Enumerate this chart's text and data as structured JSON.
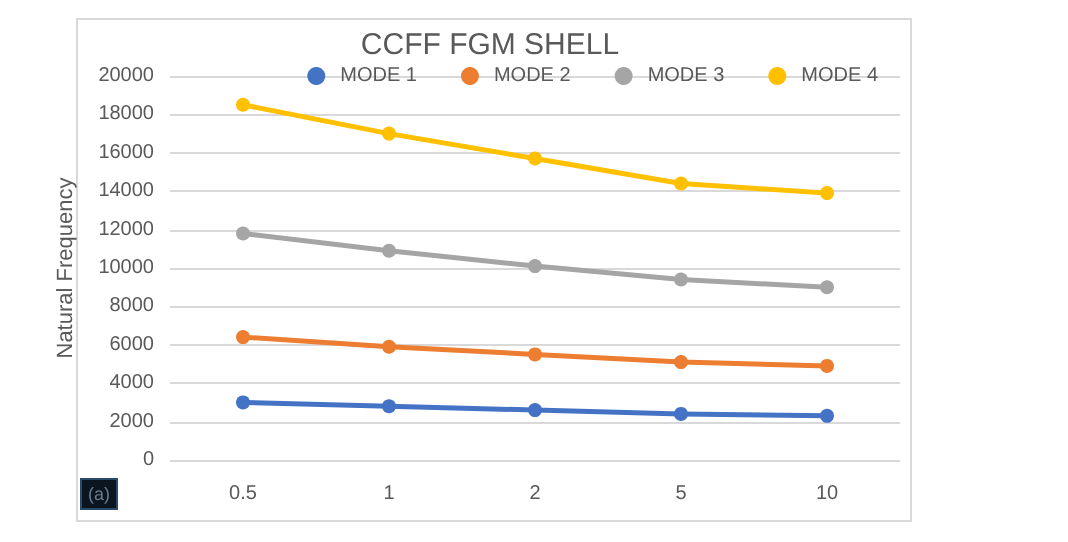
{
  "chart_data": {
    "type": "line",
    "title": "CCFF FGM SHELL",
    "ylabel": "Natural Frequency",
    "categories": [
      "0.5",
      "1",
      "2",
      "5",
      "10"
    ],
    "series": [
      {
        "name": "MODE 1",
        "color": "#4472c4",
        "values": [
          3000,
          2800,
          2600,
          2400,
          2300
        ]
      },
      {
        "name": "MODE 2",
        "color": "#ed7d31",
        "values": [
          6400,
          5900,
          5500,
          5100,
          4900
        ]
      },
      {
        "name": "MODE 3",
        "color": "#a5a5a5",
        "values": [
          11800,
          10900,
          10100,
          9400,
          9000
        ]
      },
      {
        "name": "MODE 4",
        "color": "#ffc000",
        "values": [
          18500,
          17000,
          15700,
          14400,
          13900
        ]
      }
    ],
    "ylim": [
      0,
      20000
    ],
    "yticks": [
      0,
      2000,
      4000,
      6000,
      8000,
      10000,
      12000,
      14000,
      16000,
      18000,
      20000
    ],
    "grid": "y",
    "legend": "top",
    "marker": "circle",
    "line_style": "solid",
    "annotations": [
      "(a)"
    ]
  }
}
